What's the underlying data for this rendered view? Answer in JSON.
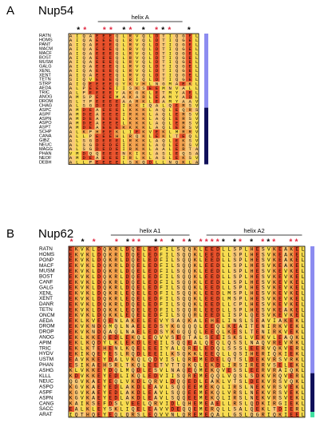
{
  "panels": [
    {
      "letter": "A",
      "protein": "Nup54",
      "star_symbol": "*",
      "helices": [
        {
          "label": "helix A",
          "start": 4,
          "end": 17
        }
      ],
      "stars": [
        {
          "col": 1,
          "color": "#000000"
        },
        {
          "col": 2,
          "color": "#e0203a"
        },
        {
          "col": 5,
          "color": "#e0203a"
        },
        {
          "col": 6,
          "color": "#e0203a"
        },
        {
          "col": 8,
          "color": "#000000"
        },
        {
          "col": 9,
          "color": "#e0203a"
        },
        {
          "col": 11,
          "color": "#000000"
        },
        {
          "col": 13,
          "color": "#e0203a"
        },
        {
          "col": 14,
          "color": "#000000"
        },
        {
          "col": 15,
          "color": "#e0203a"
        },
        {
          "col": 18,
          "color": "#000000"
        }
      ],
      "names": [
        "RATN",
        "HOMS",
        "PANT",
        "MACM",
        "MACF",
        "BOST",
        "MUSM",
        "GALG",
        "XENL",
        "XENT",
        "TETN",
        "STRP",
        "AEDA",
        "TRIC",
        "ANOG",
        "DROM",
        "CHAG",
        "ASPC",
        "ASPF",
        "ASPN",
        "ASPO",
        "ASPT",
        "SCHP",
        "CANA",
        "GIBZ",
        "NEUC",
        "MAGG",
        "PHAN",
        "NEOF",
        "DEBH"
      ],
      "sequences": [
        "AIQAEEEQLRVQLDTIQGEL",
        "AIQAEEEQLRVQLDTIQGEL",
        "AIQAEEEQLRVQLDTIQGEL",
        "AIQAEEEQLRVQLDTIQGEL",
        "AIQAEEEQLRVQLDTIQGEL",
        "AIQAEEEQLRVQLDTIQGEL",
        "AIQAEEEQLRVQLDTIQGEL",
        "AIQAEEEQLRVQLDTIQGEL",
        "AIQAEEEQLRVQLDTIQGEL",
        "AIQAEEEQLRVQLDTIQGEL",
        "SIQVEEEQLRIQLDTIQGEL",
        "AIQEEEEQYKVHLNGMAEKL",
        "ALPEEEEIISKSEEMNVALL",
        "ALPEEEEYAKGKLETMYAEL",
        "AMSPEEEMAKARLEAMYADL",
        "SLTPEEEEAARKLEAMYAAV",
        "ALSGDEDEIKKIQALQERSV",
        "AMDEAEEELKKKLAQLEQRS",
        "AMDEAEEEIRKKLAQLERSV",
        "AMDEAEEELKKKLAQLERSV",
        "AMDEAEEELKKKLAQLERSV",
        "AMDEAEEEKKKKLAQLERSV",
        "ALKPHEEKLIEKVEKLMRRV",
        "ALLPEEEHLRQKLEKLTEQL",
        "ALSGDEEELRKKLAQLEKSV",
        "ALSGDEDEIKKKLAQLEKSV",
        "ALSGDEDEIRKKLAALERTA",
        "VMDQQEEENKIKLASLEQSA",
        "AMDEAEEEIRLKLASLEKSV",
        "ALLPEEEELSKQDLLNQKLA"
      ],
      "groups": [
        {
          "color": "#8c8cf0",
          "from": 0,
          "to": 16
        },
        {
          "color": "#10105a",
          "from": 17,
          "to": 29
        }
      ]
    },
    {
      "letter": "B",
      "protein": "Nup62",
      "star_symbol": "*",
      "helices": [
        {
          "label": "helix A1",
          "start": 7,
          "end": 21
        },
        {
          "label": "helix A2",
          "start": 24,
          "end": 41
        }
      ],
      "stars": [
        {
          "col": 0,
          "color": "#e0203a"
        },
        {
          "col": 2,
          "color": "#000000"
        },
        {
          "col": 4,
          "color": "#e0203a"
        },
        {
          "col": 8,
          "color": "#e0203a"
        },
        {
          "col": 10,
          "color": "#000000"
        },
        {
          "col": 11,
          "color": "#e0203a"
        },
        {
          "col": 12,
          "color": "#e0203a"
        },
        {
          "col": 15,
          "color": "#000000"
        },
        {
          "col": 16,
          "color": "#e0203a"
        },
        {
          "col": 18,
          "color": "#000000"
        },
        {
          "col": 20,
          "color": "#e0203a"
        },
        {
          "col": 21,
          "color": "#000000"
        },
        {
          "col": 23,
          "color": "#e0203a"
        },
        {
          "col": 24,
          "color": "#e0203a"
        },
        {
          "col": 25,
          "color": "#e0203a"
        },
        {
          "col": 26,
          "color": "#e0203a"
        },
        {
          "col": 27,
          "color": "#000000"
        },
        {
          "col": 29,
          "color": "#000000"
        },
        {
          "col": 30,
          "color": "#e0203a"
        },
        {
          "col": 32,
          "color": "#000000"
        },
        {
          "col": 34,
          "color": "#e0203a"
        },
        {
          "col": 35,
          "color": "#000000"
        },
        {
          "col": 36,
          "color": "#e0203a"
        },
        {
          "col": 39,
          "color": "#e0203a"
        },
        {
          "col": 40,
          "color": "#e0203a"
        }
      ],
      "names": [
        "RATN",
        "HOMS",
        "PONP",
        "MACF",
        "MUSM",
        "BOST",
        "CANF",
        "GALG",
        "XENL",
        "XENT",
        "DANR",
        "TETN",
        "ONCM",
        "AEDA",
        "DROM",
        "DROP",
        "ANOG",
        "APIM",
        "TRIC",
        "HYDV",
        "USTM",
        "PHAN",
        "ASHG",
        "KLLL",
        "NEUC",
        "ASPO",
        "ASPF",
        "ASPN",
        "CANG",
        "SACC",
        "ARAT"
      ],
      "sequences": [
        "EKVKLDQKRLDQELEDFILSQQKLEEDLLSPLHESVKEAKEL",
        "EKVKLDQKRLDQELEDFILSQQKLEEDLLSPLHESVKEAKEL",
        "EKVKLDQKRLDQELEDFILSQQKLEEDLLSPLHESVKEAKEL",
        "EKVKLDQKRLDQELEDFILSQQKLEEDLLSPLHESVKEAKEL",
        "EKVKLDQKRLDQELEDFILSQQKLEEDLLSPLHESVKEVKEL",
        "EKVKLDQKRLDQELEDFILSQQKLEEDLLSPLHESVKEVKEL",
        "EKVKLDQKRLDQELEDFILSQQKLEEDLLSPLHESVKEVKEL",
        "EKVKLDQKRLDQELEDFILSQQKLEEDLLSPLHESVKEVKEL",
        "EKVKLDQKRLEQELEDFILSQQKLEEDLMSPLHESVKEVKEL",
        "EKVKLDQKRLEQELEDFILSQQKLEEDLMSPLHESVKEVKEL",
        "EKVKLDQKRLDQELEDFILSQQKLEEDLLCPLHESVKEVKEL",
        "EKVKLDQKKLEQELEDFILSQQRLEEDLLSPLHESVKEAKEL",
        "EKVKLDQKKLEQELEDFILSQQRLEEDLISPLQESVKEVKEL",
        "EKLKVEQENLAKELEEVYSAQKALEHELINSLSEAVIAKEKL",
        "EKVKNDQMQLNAELEDSYKGQQQLEEQLKEAITENIRKVEKL",
        "EKVKNDQAQLNAELEDSYKGQQQLEEQLKESLTENIRKVEKL",
        "EKLKKEQEDLEKQLEQVVSEQTALSEEISKSLVEKVLEAQKL",
        "EKLKQDYLKLEKDLEEILSQQEALQEQLQSSLNAQVREVRKL",
        "EKLKTEHENLKQELEEIYALQRELEDQLSSSLEERVQKVERL",
        "EKIKQEYESLRQDLEEILKSQKKLEEQLLQSIHERIQKIEKL",
        "EAVKKEYDALVKQLQDVISLQREMEDELQTSLDEKVRSVRKL",
        "ESIKAEHSRLTKQLEETVTTQKQLEKDLIRSIRERVSELEKL",
        "KLVKKEYDQLMQDLESVLNAQEQMEKQVESSLEERVRAIQKL",
        "KDVKKEYEDLIKQLEDVIISQREMEQQLVQSLSDKVRQVERL",
        "QGVKAEYEQLVKDLQRVLDQQEDLEAKLVTSLDEKVRSVQKL",
        "KGVKAEYEDLAKDLEAVLSQQEEMEKQLIRSLNEKVRSVEKL",
        "KGVKAEYEDLAKDLEAVLSQQEEMEKQLVRSLNEKVRSVEKL",
        "KGVKAEYEDLAKDLEAVLSQQEEMEKQLIRSLNEKVRSVEKL",
        "KAIKSEFDSLVEELQRVIDLQHEMEAELLRSLQDKIRGIEKL",
        "EALKLEYSKLIQELEAVVDEQQEMERQLLSALQEKLTDIERL",
        "IQTHQEYEQLQRSLEQVVNLQREMEQALLGSLQGRIQKIEEL"
      ],
      "groups": [
        {
          "color": "#8c8cf0",
          "from": 0,
          "to": 22
        },
        {
          "color": "#10105a",
          "from": 23,
          "to": 29
        },
        {
          "color": "#40e0a0",
          "from": 30,
          "to": 30
        }
      ]
    }
  ]
}
